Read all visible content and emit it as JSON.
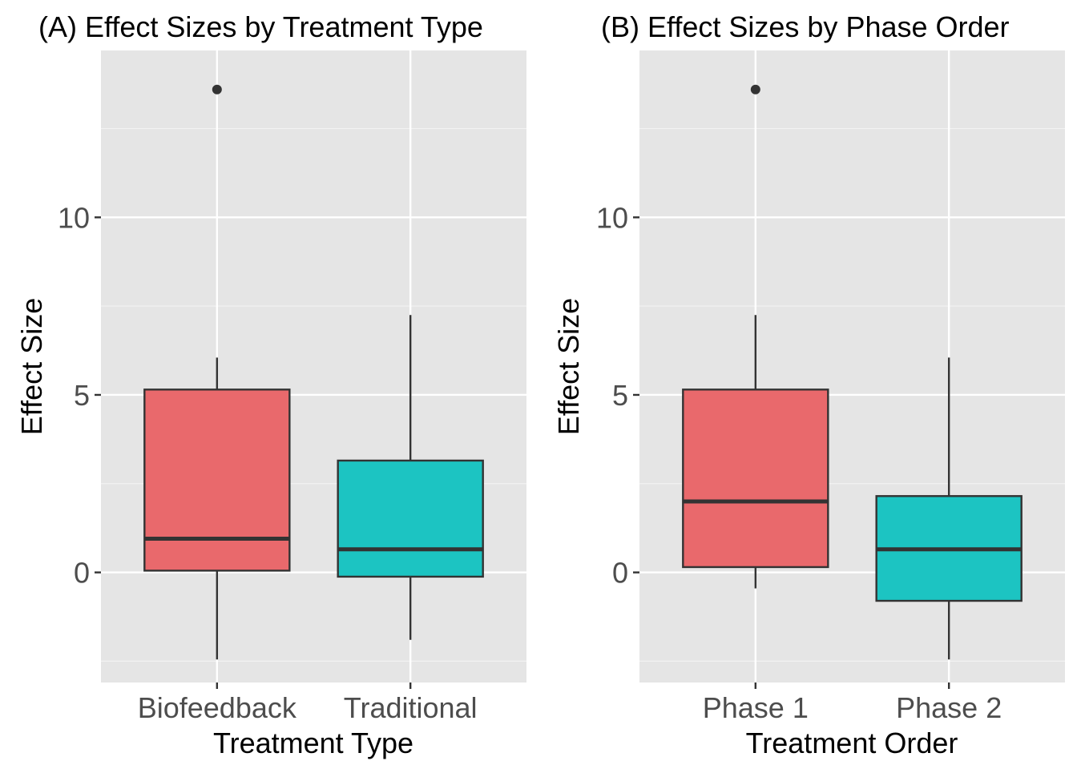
{
  "chart_data": [
    {
      "type": "boxplot",
      "title": "(A) Effect Sizes by Treatment Type",
      "xlabel": "Treatment Type",
      "ylabel": "Effect Size",
      "ylim": [
        -3.1,
        14.7
      ],
      "yticks": [
        0,
        5,
        10
      ],
      "ytick_labels": [
        "0",
        "5",
        "10"
      ],
      "grid": true,
      "legend": "none",
      "categories": [
        "Biofeedback",
        "Traditional"
      ],
      "colors": [
        "#E9696C",
        "#1CC4C2"
      ],
      "boxes": [
        {
          "category": "Biofeedback",
          "whisker_low": -2.45,
          "q1": 0.05,
          "median": 0.95,
          "q3": 5.15,
          "whisker_high": 6.05,
          "outliers": [
            13.6
          ]
        },
        {
          "category": "Traditional",
          "whisker_low": -1.9,
          "q1": -0.12,
          "median": 0.65,
          "q3": 3.15,
          "whisker_high": 7.25,
          "outliers": []
        }
      ]
    },
    {
      "type": "boxplot",
      "title": "(B) Effect Sizes by Phase Order",
      "xlabel": "Treatment Order",
      "ylabel": "Effect Size",
      "ylim": [
        -3.1,
        14.7
      ],
      "yticks": [
        0,
        5,
        10
      ],
      "ytick_labels": [
        "0",
        "5",
        "10"
      ],
      "grid": true,
      "legend": "none",
      "categories": [
        "Phase 1",
        "Phase 2"
      ],
      "colors": [
        "#E9696C",
        "#1CC4C2"
      ],
      "boxes": [
        {
          "category": "Phase 1",
          "whisker_low": -0.45,
          "q1": 0.15,
          "median": 2.0,
          "q3": 5.15,
          "whisker_high": 7.25,
          "outliers": [
            13.6
          ]
        },
        {
          "category": "Phase 2",
          "whisker_low": -2.45,
          "q1": -0.8,
          "median": 0.65,
          "q3": 2.15,
          "whisker_high": 6.05,
          "outliers": []
        }
      ]
    }
  ]
}
